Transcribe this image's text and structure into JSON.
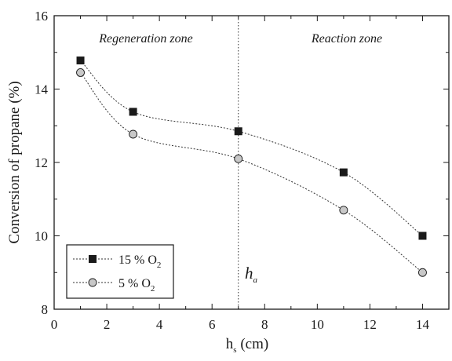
{
  "chart_data": {
    "type": "scatter",
    "xlabel": "h",
    "xlabel_sub": "s",
    "xlabel_unit": " (cm)",
    "ylabel": "Conversion of propane (%)",
    "xlim": [
      0,
      15
    ],
    "ylim": [
      8,
      16
    ],
    "x_ticks": [
      "0",
      "2",
      "4",
      "6",
      "8",
      "10",
      "12",
      "14"
    ],
    "y_ticks": [
      "8",
      "10",
      "12",
      "14",
      "16"
    ],
    "grid": false,
    "legend": "bottom-left",
    "series": [
      {
        "name": "15 % O",
        "name_sub": "2",
        "marker": "square",
        "color": "#1a1a1a",
        "x": [
          1,
          3,
          7,
          11,
          14
        ],
        "y": [
          14.78,
          13.38,
          12.85,
          11.73,
          10.0
        ]
      },
      {
        "name": "5 % O",
        "name_sub": "2",
        "marker": "circle",
        "color": "#c8c8c8",
        "x": [
          1,
          3,
          7,
          11,
          14
        ],
        "y": [
          14.45,
          12.77,
          12.1,
          10.7,
          9.0
        ]
      }
    ],
    "annotations": {
      "divider_x": 7,
      "zone_left": "Regeneration zone",
      "zone_right": "Reaction zone",
      "marker_text": "h",
      "marker_sub": "a"
    }
  }
}
